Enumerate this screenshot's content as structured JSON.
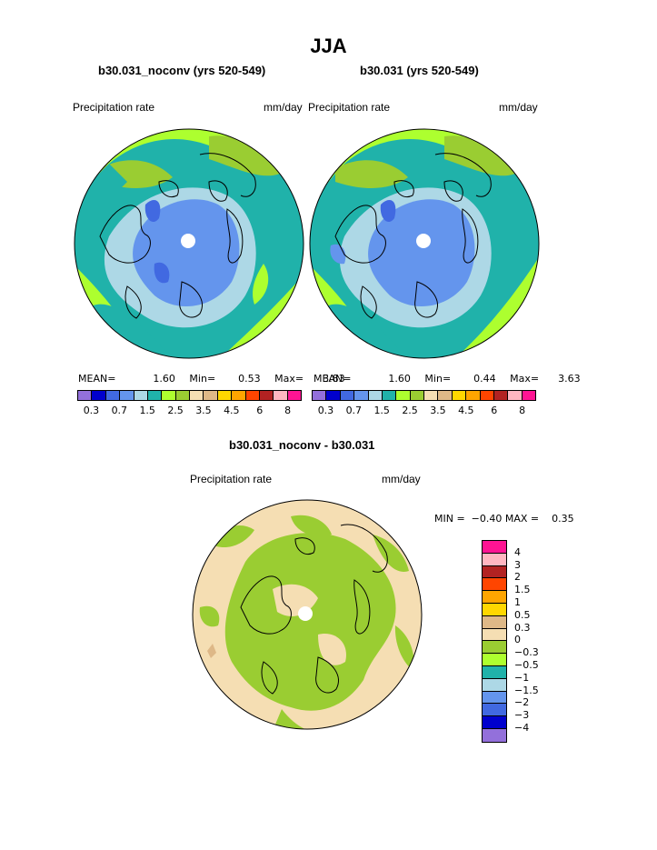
{
  "header": {
    "title": "JJA"
  },
  "panels": [
    {
      "subtitle": "b30.031_noconv (yrs 520-549)",
      "left_label": "Precipitation rate",
      "right_label": "mm/day",
      "stats": {
        "mean_label": "MEAN=",
        "mean": "1.60",
        "min_label": "Min=",
        "min": "0.53",
        "max_label": "Max=",
        "max": "3.83"
      }
    },
    {
      "subtitle": "b30.031 (yrs 520-549)",
      "left_label": "Precipitation rate",
      "right_label": "mm/day",
      "stats": {
        "mean_label": "MEAN=",
        "mean": "1.60",
        "min_label": "Min=",
        "min": "0.44",
        "max_label": "Max=",
        "max": "3.63"
      }
    }
  ],
  "colorbar_levels": [
    "0.3",
    "0.7",
    "1.5",
    "2.5",
    "3.5",
    "4.5",
    "6",
    "8"
  ],
  "colorbar_colors": [
    "#9370db",
    "#0000cd",
    "#4169e1",
    "#6495ed",
    "#add8e6",
    "#20b2aa",
    "#adff2f",
    "#9acd32",
    "#f5deb3",
    "#deb887",
    "#ffd700",
    "#ffa500",
    "#ff4500",
    "#b22222",
    "#ffb6c1",
    "#ff1493"
  ],
  "difference": {
    "subtitle": "b30.031_noconv - b30.031",
    "left_label": "Precipitation rate",
    "right_label": "mm/day",
    "minmax_text": "MIN =  −0.40 MAX =    0.35",
    "levels": [
      "4",
      "3",
      "2",
      "1.5",
      "1",
      "0.5",
      "0.3",
      "0",
      "−0.3",
      "−0.5",
      "−1",
      "−1.5",
      "−2",
      "−3",
      "−4"
    ],
    "colors": [
      "#ff1493",
      "#ffb6c1",
      "#b22222",
      "#ff4500",
      "#ffa500",
      "#ffd700",
      "#deb887",
      "#f5deb3",
      "#9acd32",
      "#adff2f",
      "#20b2aa",
      "#add8e6",
      "#6495ed",
      "#4169e1",
      "#0000cd",
      "#9370db"
    ]
  }
}
